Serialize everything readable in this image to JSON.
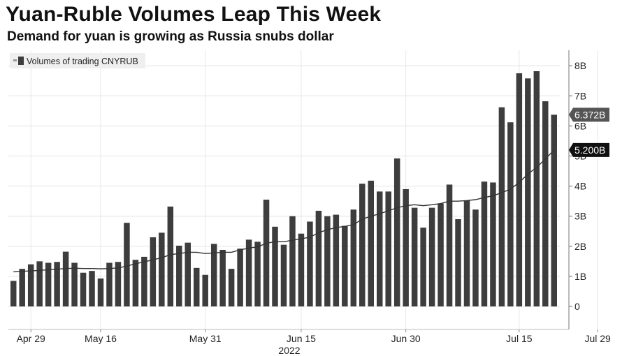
{
  "chart_data": {
    "type": "bar",
    "title": "Yuan-Ruble Volumes Leap This Week",
    "subtitle": "Demand for yuan is growing as Russia snubs dollar",
    "legend": {
      "label": "Volumes of trading CNYRUB",
      "placement": "top-left"
    },
    "grid": true,
    "y_axis": {
      "position": "right",
      "ylim": [
        -0.7,
        8.5
      ],
      "ticks": [
        0,
        1,
        2,
        3,
        4,
        5,
        6,
        7,
        8
      ],
      "tick_labels": [
        "0",
        "1B",
        "2B",
        "3B",
        "4B",
        "5B",
        "6B",
        "7B",
        "8B"
      ]
    },
    "x_axis": {
      "tick_labels": [
        "Apr 29",
        "May 16",
        "May 31",
        "Jun 15",
        "Jun 30",
        "Jul 15",
        "Jul 29"
      ],
      "tick_indices": [
        2,
        10,
        22,
        33,
        45,
        58,
        67
      ],
      "year_label": "2022"
    },
    "series": [
      {
        "kind": "bar",
        "color": "#3d3d3d",
        "values": [
          0.85,
          1.25,
          1.4,
          1.5,
          1.45,
          1.48,
          1.82,
          1.45,
          1.12,
          1.18,
          0.93,
          1.45,
          1.48,
          2.78,
          1.55,
          1.65,
          2.3,
          2.45,
          3.32,
          2.02,
          2.12,
          1.28,
          1.05,
          2.08,
          1.88,
          1.25,
          1.92,
          2.22,
          2.15,
          3.55,
          2.65,
          2.05,
          3.0,
          2.42,
          2.82,
          3.18,
          3.0,
          3.05,
          2.68,
          3.22,
          4.08,
          4.18,
          3.82,
          3.82,
          4.92,
          3.9,
          3.28,
          2.62,
          3.28,
          3.42,
          4.05,
          2.9,
          3.52,
          3.22,
          4.15,
          4.12,
          6.62,
          6.12,
          7.75,
          7.58,
          7.82,
          6.82,
          6.372
        ]
      },
      {
        "kind": "line",
        "color": "#333333",
        "values": [
          1.15,
          1.17,
          1.18,
          1.2,
          1.22,
          1.24,
          1.26,
          1.27,
          1.26,
          1.26,
          1.25,
          1.26,
          1.28,
          1.34,
          1.42,
          1.48,
          1.55,
          1.62,
          1.72,
          1.76,
          1.8,
          1.8,
          1.76,
          1.78,
          1.8,
          1.8,
          1.88,
          1.94,
          1.98,
          2.1,
          2.15,
          2.15,
          2.2,
          2.25,
          2.3,
          2.45,
          2.55,
          2.62,
          2.66,
          2.72,
          2.9,
          3.0,
          3.08,
          3.18,
          3.28,
          3.35,
          3.38,
          3.35,
          3.38,
          3.42,
          3.5,
          3.5,
          3.52,
          3.55,
          3.62,
          3.68,
          3.78,
          3.9,
          4.12,
          4.4,
          4.62,
          4.9,
          5.2
        ]
      }
    ],
    "annotations": [
      {
        "label": "6.372B",
        "value": 6.372,
        "style": "gray"
      },
      {
        "label": "5.200B",
        "value": 5.2,
        "style": "black"
      }
    ]
  }
}
